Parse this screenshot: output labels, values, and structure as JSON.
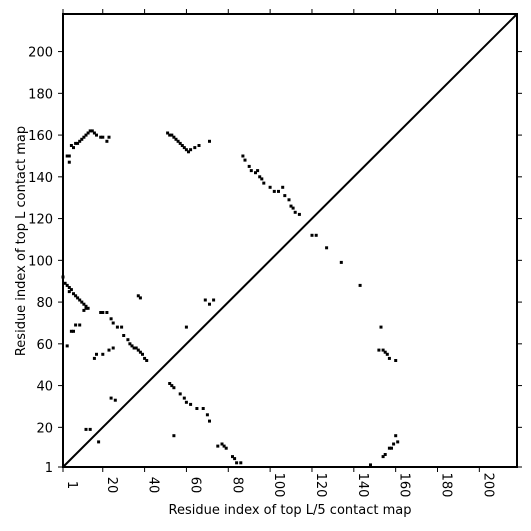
{
  "chart_data": {
    "type": "scatter",
    "title": "",
    "xlabel": "Residue index of top L/5 contact map",
    "ylabel": "Residue index of top L contact map",
    "xlim": [
      1,
      218
    ],
    "ylim": [
      1,
      218
    ],
    "xticks": [
      1,
      20,
      40,
      60,
      80,
      100,
      120,
      140,
      160,
      180,
      200
    ],
    "yticks": [
      1,
      20,
      40,
      60,
      80,
      100,
      120,
      140,
      160,
      180,
      200
    ],
    "grid": false,
    "diagonal": true,
    "marker": "square",
    "color": "#000000",
    "series": [
      {
        "values": [
          [
            1,
            92
          ],
          [
            2,
            89
          ],
          [
            3,
            88
          ],
          [
            4,
            87
          ],
          [
            4,
            85
          ],
          [
            5,
            86
          ],
          [
            6,
            84
          ],
          [
            7,
            83
          ],
          [
            8,
            82
          ],
          [
            9,
            81
          ],
          [
            10,
            80
          ],
          [
            11,
            79
          ],
          [
            12,
            78
          ],
          [
            12,
            77
          ],
          [
            13,
            77
          ],
          [
            11,
            76
          ],
          [
            3,
            59
          ],
          [
            5,
            66
          ],
          [
            6,
            66
          ],
          [
            7,
            69
          ],
          [
            9,
            69
          ],
          [
            12,
            19
          ],
          [
            14,
            19
          ],
          [
            18,
            13
          ],
          [
            3,
            150
          ],
          [
            4,
            150
          ],
          [
            4,
            147
          ],
          [
            5,
            155
          ],
          [
            6,
            154
          ],
          [
            7,
            156
          ],
          [
            8,
            156
          ],
          [
            9,
            157
          ],
          [
            10,
            158
          ],
          [
            11,
            159
          ],
          [
            12,
            160
          ],
          [
            13,
            161
          ],
          [
            14,
            162
          ],
          [
            15,
            162
          ],
          [
            16,
            161
          ],
          [
            17,
            160
          ],
          [
            19,
            159
          ],
          [
            20,
            159
          ],
          [
            22,
            157
          ],
          [
            23,
            159
          ],
          [
            19,
            75
          ],
          [
            20,
            75
          ],
          [
            22,
            75
          ],
          [
            24,
            72
          ],
          [
            25,
            70
          ],
          [
            27,
            68
          ],
          [
            29,
            68
          ],
          [
            30,
            64
          ],
          [
            32,
            62
          ],
          [
            33,
            60
          ],
          [
            34,
            59
          ],
          [
            35,
            58
          ],
          [
            36,
            58
          ],
          [
            37,
            57
          ],
          [
            38,
            56
          ],
          [
            39,
            55
          ],
          [
            40,
            53
          ],
          [
            41,
            52
          ],
          [
            16,
            53
          ],
          [
            17,
            55
          ],
          [
            20,
            55
          ],
          [
            23,
            57
          ],
          [
            25,
            58
          ],
          [
            37,
            83
          ],
          [
            38,
            82
          ],
          [
            24,
            34
          ],
          [
            26,
            33
          ],
          [
            51,
            161
          ],
          [
            52,
            160
          ],
          [
            53,
            160
          ],
          [
            54,
            159
          ],
          [
            55,
            158
          ],
          [
            56,
            157
          ],
          [
            57,
            156
          ],
          [
            58,
            155
          ],
          [
            59,
            154
          ],
          [
            60,
            153
          ],
          [
            61,
            152
          ],
          [
            62,
            153
          ],
          [
            64,
            154
          ],
          [
            66,
            155
          ],
          [
            71,
            157
          ],
          [
            52,
            41
          ],
          [
            53,
            40
          ],
          [
            54,
            39
          ],
          [
            57,
            36
          ],
          [
            59,
            34
          ],
          [
            60,
            32
          ],
          [
            62,
            31
          ],
          [
            65,
            29
          ],
          [
            68,
            29
          ],
          [
            70,
            26
          ],
          [
            71,
            23
          ],
          [
            54,
            16
          ],
          [
            60,
            68
          ],
          [
            69,
            81
          ],
          [
            71,
            79
          ],
          [
            73,
            81
          ],
          [
            75,
            11
          ],
          [
            77,
            12
          ],
          [
            78,
            11
          ],
          [
            79,
            10
          ],
          [
            82,
            6
          ],
          [
            83,
            5
          ],
          [
            84,
            3
          ],
          [
            86,
            3
          ],
          [
            87,
            150
          ],
          [
            88,
            148
          ],
          [
            90,
            145
          ],
          [
            91,
            143
          ],
          [
            93,
            142
          ],
          [
            94,
            143
          ],
          [
            95,
            140
          ],
          [
            96,
            139
          ],
          [
            97,
            137
          ],
          [
            100,
            135
          ],
          [
            102,
            133
          ],
          [
            104,
            133
          ],
          [
            106,
            135
          ],
          [
            107,
            131
          ],
          [
            109,
            129
          ],
          [
            110,
            126
          ],
          [
            111,
            125
          ],
          [
            112,
            123
          ],
          [
            114,
            122
          ],
          [
            120,
            112
          ],
          [
            122,
            112
          ],
          [
            127,
            106
          ],
          [
            134,
            99
          ],
          [
            143,
            88
          ],
          [
            148,
            2
          ],
          [
            152,
            57
          ],
          [
            153,
            68
          ],
          [
            154,
            57
          ],
          [
            154,
            6
          ],
          [
            155,
            7
          ],
          [
            155,
            56
          ],
          [
            156,
            55
          ],
          [
            157,
            53
          ],
          [
            157,
            10
          ],
          [
            158,
            10
          ],
          [
            159,
            12
          ],
          [
            160,
            52
          ],
          [
            160,
            16
          ],
          [
            161,
            13
          ]
        ]
      }
    ]
  }
}
